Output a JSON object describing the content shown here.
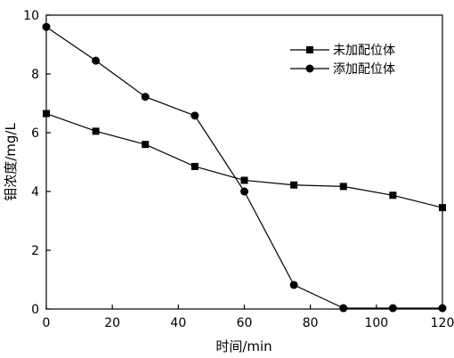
{
  "chart_data": {
    "type": "line",
    "xlabel": "时间/min",
    "ylabel": "钼浓度/mg/L",
    "xlim": [
      0,
      120
    ],
    "ylim": [
      0,
      10
    ],
    "xticks": [
      0,
      20,
      40,
      60,
      80,
      100,
      120
    ],
    "yticks": [
      0,
      2,
      4,
      6,
      8,
      10
    ],
    "grid": false,
    "legend_position": "top-right",
    "x": [
      0,
      15,
      30,
      45,
      60,
      75,
      90,
      105,
      120
    ],
    "series": [
      {
        "name": "未加配位体",
        "marker": "square",
        "values": [
          6.65,
          6.05,
          5.6,
          4.85,
          4.38,
          4.22,
          4.17,
          3.87,
          3.45
        ]
      },
      {
        "name": "添加配位体",
        "marker": "circle",
        "values": [
          9.6,
          8.45,
          7.22,
          6.58,
          4.0,
          0.82,
          0.03,
          0.03,
          0.03
        ]
      }
    ]
  }
}
